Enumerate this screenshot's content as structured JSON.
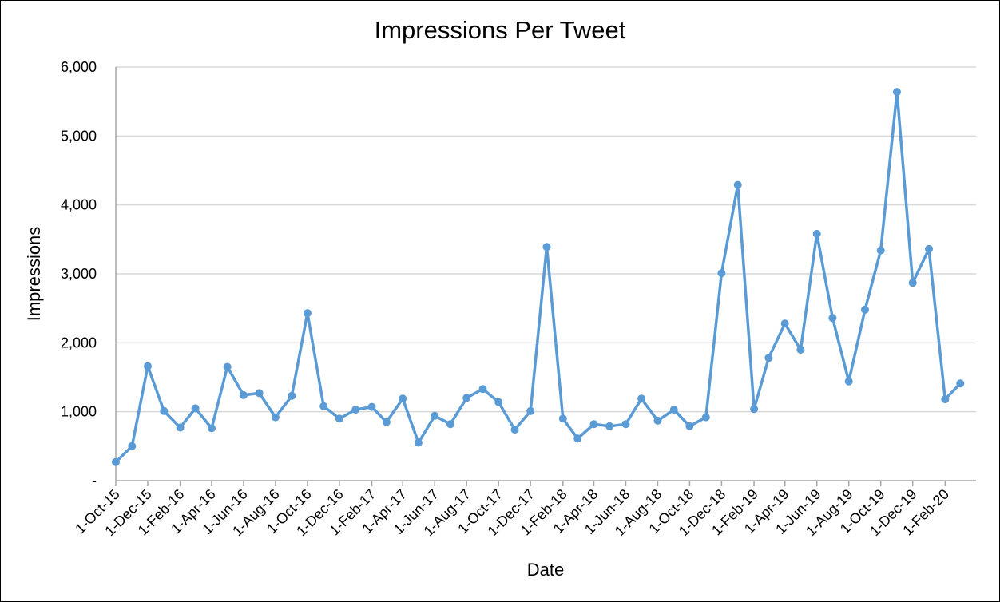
{
  "chart_data": {
    "type": "line",
    "title": "Impressions Per Tweet",
    "xlabel": "Date",
    "ylabel": "Impressions",
    "ylim": [
      0,
      6000
    ],
    "yticks": [
      {
        "value": 0,
        "label": "-"
      },
      {
        "value": 1000,
        "label": "1,000"
      },
      {
        "value": 2000,
        "label": "2,000"
      },
      {
        "value": 3000,
        "label": "3,000"
      },
      {
        "value": 4000,
        "label": "4,000"
      },
      {
        "value": 5000,
        "label": "5,000"
      },
      {
        "value": 6000,
        "label": "6,000"
      }
    ],
    "xlim": [
      "2015-10-01",
      "2020-03-31"
    ],
    "xticks": [
      {
        "date": "2015-10-01",
        "label": "1-Oct-15"
      },
      {
        "date": "2015-12-01",
        "label": "1-Dec-15"
      },
      {
        "date": "2016-02-01",
        "label": "1-Feb-16"
      },
      {
        "date": "2016-04-01",
        "label": "1-Apr-16"
      },
      {
        "date": "2016-06-01",
        "label": "1-Jun-16"
      },
      {
        "date": "2016-08-01",
        "label": "1-Aug-16"
      },
      {
        "date": "2016-10-01",
        "label": "1-Oct-16"
      },
      {
        "date": "2016-12-01",
        "label": "1-Dec-16"
      },
      {
        "date": "2017-02-01",
        "label": "1-Feb-17"
      },
      {
        "date": "2017-04-01",
        "label": "1-Apr-17"
      },
      {
        "date": "2017-06-01",
        "label": "1-Jun-17"
      },
      {
        "date": "2017-08-01",
        "label": "1-Aug-17"
      },
      {
        "date": "2017-10-01",
        "label": "1-Oct-17"
      },
      {
        "date": "2017-12-01",
        "label": "1-Dec-17"
      },
      {
        "date": "2018-02-01",
        "label": "1-Feb-18"
      },
      {
        "date": "2018-04-01",
        "label": "1-Apr-18"
      },
      {
        "date": "2018-06-01",
        "label": "1-Jun-18"
      },
      {
        "date": "2018-08-01",
        "label": "1-Aug-18"
      },
      {
        "date": "2018-10-01",
        "label": "1-Oct-18"
      },
      {
        "date": "2018-12-01",
        "label": "1-Dec-18"
      },
      {
        "date": "2019-02-01",
        "label": "1-Feb-19"
      },
      {
        "date": "2019-04-01",
        "label": "1-Apr-19"
      },
      {
        "date": "2019-06-01",
        "label": "1-Jun-19"
      },
      {
        "date": "2019-08-01",
        "label": "1-Aug-19"
      },
      {
        "date": "2019-10-01",
        "label": "1-Oct-19"
      },
      {
        "date": "2019-12-01",
        "label": "1-Dec-19"
      },
      {
        "date": "2020-02-01",
        "label": "1-Feb-20"
      }
    ],
    "grid": "horizontal",
    "series": [
      {
        "color": "#5B9BD5",
        "x": [
          "2015-10-01",
          "2015-11-01",
          "2015-12-01",
          "2016-01-01",
          "2016-02-01",
          "2016-03-01",
          "2016-04-01",
          "2016-05-01",
          "2016-06-01",
          "2016-07-01",
          "2016-08-01",
          "2016-09-01",
          "2016-10-01",
          "2016-11-01",
          "2016-12-01",
          "2017-01-01",
          "2017-02-01",
          "2017-03-01",
          "2017-04-01",
          "2017-05-01",
          "2017-06-01",
          "2017-07-01",
          "2017-08-01",
          "2017-09-01",
          "2017-10-01",
          "2017-11-01",
          "2017-12-01",
          "2018-01-01",
          "2018-02-01",
          "2018-03-01",
          "2018-04-01",
          "2018-05-01",
          "2018-06-01",
          "2018-07-01",
          "2018-08-01",
          "2018-09-01",
          "2018-10-01",
          "2018-11-01",
          "2018-12-01",
          "2019-01-01",
          "2019-02-01",
          "2019-03-01",
          "2019-04-01",
          "2019-05-01",
          "2019-06-01",
          "2019-07-01",
          "2019-08-01",
          "2019-09-01",
          "2019-10-01",
          "2019-11-01",
          "2019-12-01",
          "2020-01-01",
          "2020-02-01",
          "2020-03-01"
        ],
        "y": [
          270,
          500,
          1660,
          1010,
          770,
          1050,
          760,
          1650,
          1240,
          1270,
          920,
          1230,
          2430,
          1080,
          900,
          1030,
          1070,
          850,
          1190,
          550,
          940,
          820,
          1200,
          1330,
          1140,
          740,
          1010,
          3390,
          900,
          610,
          820,
          790,
          820,
          1190,
          870,
          1030,
          790,
          920,
          3010,
          4290,
          1040,
          1780,
          2280,
          1900,
          3580,
          2360,
          1440,
          2480,
          3340,
          5640,
          2870,
          3360,
          1180,
          1410
        ]
      }
    ]
  }
}
